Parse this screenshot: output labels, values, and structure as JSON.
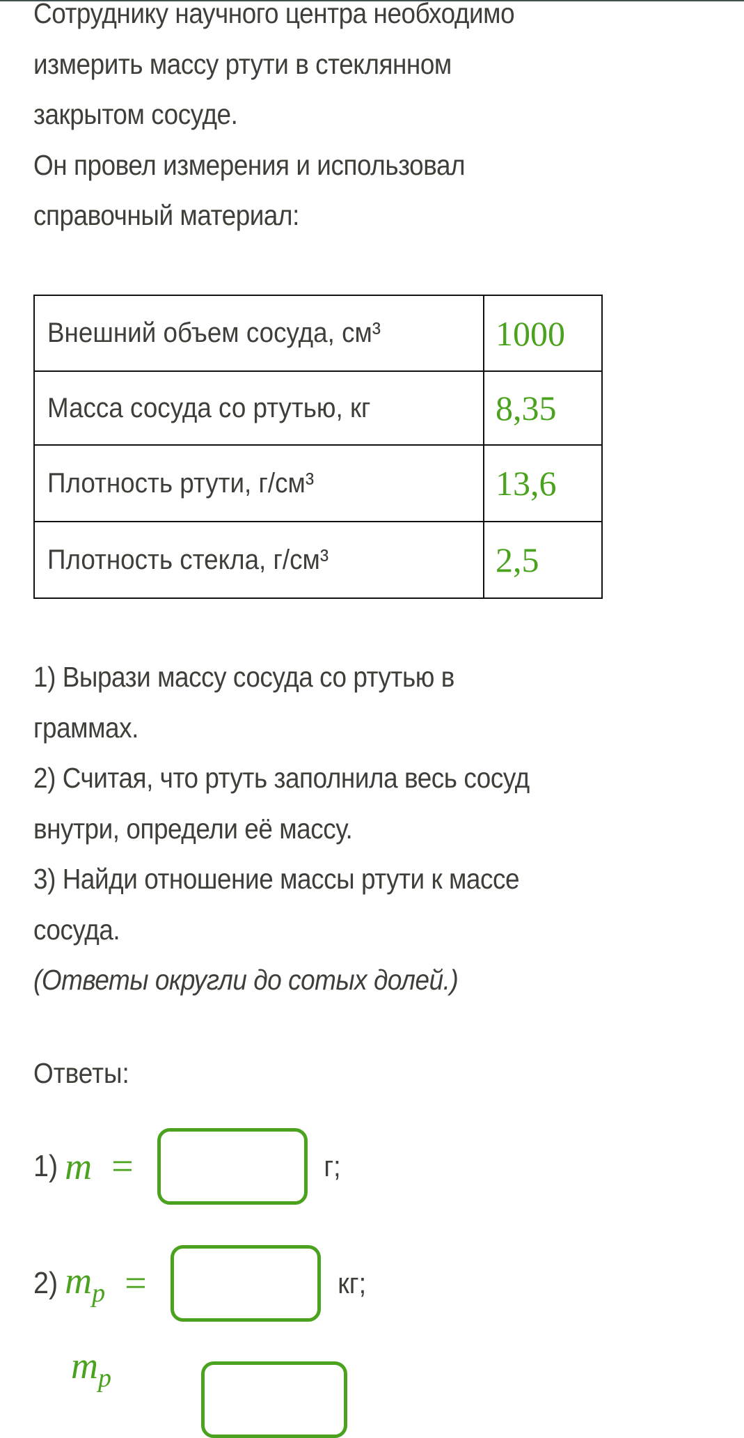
{
  "intro": {
    "line1": "Сотруднику научного центра необходимо",
    "line2": "измерить массу ртути в стеклянном",
    "line3": "закрытом сосуде.",
    "line4": "Он провел измерения и использовал",
    "line5": "справочный материал:"
  },
  "table": {
    "rows": [
      {
        "label": "Внешний объем сосуда, см³",
        "value": "1000"
      },
      {
        "label": "Масса сосуда со ртутью, кг",
        "value": "8,35"
      },
      {
        "label": "Плотность ртути, г/см³",
        "value": "13,6"
      },
      {
        "label": "Плотность стекла, г/см³",
        "value": "2,5"
      }
    ]
  },
  "tasks": {
    "t1a": "1) Вырази массу сосуда со ртутью в",
    "t1b": "граммах.",
    "t2a": "2) Считая, что ртуть заполнила весь сосуд",
    "t2b": "внутри, определи её массу.",
    "t3a": "3) Найди отношение массы ртути к массе",
    "t3b": "сосуда.",
    "note": "(Ответы округли до сотых долей.)"
  },
  "answers": {
    "heading": "Ответы:",
    "items": [
      {
        "number": "1)",
        "var": "m",
        "sub": "",
        "eq": "=",
        "value": "",
        "unit": "г;"
      },
      {
        "number": "2)",
        "var": "m",
        "sub": "p",
        "eq": "=",
        "value": "",
        "unit": "кг;"
      }
    ],
    "fraction_numerator": "m",
    "fraction_sub": "p"
  },
  "colors": {
    "accent": "#4aa21e",
    "text": "#3f3f3a"
  }
}
